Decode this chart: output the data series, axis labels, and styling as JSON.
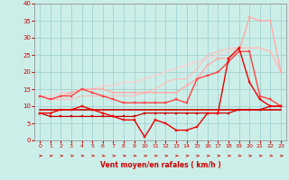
{
  "xlabel": "Vent moyen/en rafales ( km/h )",
  "xlim": [
    -0.5,
    23.5
  ],
  "ylim": [
    0,
    40
  ],
  "xticks": [
    0,
    1,
    2,
    3,
    4,
    5,
    6,
    7,
    8,
    9,
    10,
    11,
    12,
    13,
    14,
    15,
    16,
    17,
    18,
    19,
    20,
    21,
    22,
    23
  ],
  "yticks": [
    0,
    5,
    10,
    15,
    20,
    25,
    30,
    35,
    40
  ],
  "bg_color": "#cceee8",
  "grid_color": "#99cccc",
  "series": [
    {
      "x": [
        0,
        1,
        2,
        3,
        4,
        5,
        6,
        7,
        8,
        9,
        10,
        11,
        12,
        13,
        14,
        15,
        16,
        17,
        18,
        19,
        20,
        21,
        22,
        23
      ],
      "y": [
        9,
        9,
        9,
        9,
        9,
        9,
        9,
        9,
        9,
        9,
        9,
        9,
        9,
        9,
        9,
        9,
        9,
        9,
        9,
        9,
        9,
        9,
        9,
        9
      ],
      "color": "#cc0000",
      "lw": 1.2,
      "marker": null,
      "ms": 0,
      "alpha": 1.0,
      "zorder": 4
    },
    {
      "x": [
        0,
        1,
        2,
        3,
        4,
        5,
        6,
        7,
        8,
        9,
        10,
        11,
        12,
        13,
        14,
        15,
        16,
        17,
        18,
        19,
        20,
        21,
        22,
        23
      ],
      "y": [
        8,
        7,
        7,
        7,
        7,
        7,
        7,
        7,
        7,
        7,
        8,
        8,
        8,
        8,
        8,
        8,
        8,
        8,
        8,
        9,
        9,
        9,
        10,
        10
      ],
      "color": "#cc0000",
      "lw": 0.9,
      "marker": "s",
      "ms": 2,
      "alpha": 1.0,
      "zorder": 4
    },
    {
      "x": [
        0,
        1,
        2,
        3,
        4,
        5,
        6,
        7,
        8,
        9,
        10,
        11,
        12,
        13,
        14,
        15,
        16,
        17,
        18,
        19,
        20,
        21,
        22,
        23
      ],
      "y": [
        8,
        8,
        9,
        9,
        10,
        9,
        8,
        7,
        6,
        6,
        1,
        6,
        5,
        3,
        3,
        4,
        8,
        8,
        24,
        27,
        17,
        12,
        10,
        10
      ],
      "color": "#ee0000",
      "lw": 1.0,
      "marker": "s",
      "ms": 2,
      "alpha": 1.0,
      "zorder": 5
    },
    {
      "x": [
        0,
        1,
        2,
        3,
        4,
        5,
        6,
        7,
        8,
        9,
        10,
        11,
        12,
        13,
        14,
        15,
        16,
        17,
        18,
        19,
        20,
        21,
        22,
        23
      ],
      "y": [
        13,
        12,
        13,
        13,
        15,
        14,
        13,
        12,
        11,
        11,
        11,
        11,
        11,
        12,
        11,
        18,
        19,
        20,
        23,
        26,
        26,
        13,
        12,
        10
      ],
      "color": "#ff4444",
      "lw": 1.0,
      "marker": "s",
      "ms": 2,
      "alpha": 1.0,
      "zorder": 4
    },
    {
      "x": [
        0,
        1,
        2,
        3,
        4,
        5,
        6,
        7,
        8,
        9,
        10,
        11,
        12,
        13,
        14,
        15,
        16,
        17,
        18,
        19,
        20,
        21,
        22,
        23
      ],
      "y": [
        13,
        12,
        13,
        14,
        15,
        15,
        15,
        14,
        14,
        14,
        14,
        14,
        14,
        14,
        16,
        18,
        22,
        24,
        24,
        26,
        36,
        35,
        35,
        20
      ],
      "color": "#ffaaaa",
      "lw": 1.0,
      "marker": "s",
      "ms": 2,
      "alpha": 1.0,
      "zorder": 3
    },
    {
      "x": [
        0,
        1,
        2,
        3,
        4,
        5,
        6,
        7,
        8,
        9,
        10,
        11,
        12,
        13,
        14,
        15,
        16,
        17,
        18,
        19,
        20,
        21,
        22,
        23
      ],
      "y": [
        13,
        13,
        14,
        14,
        15,
        15,
        16,
        16,
        17,
        17,
        18,
        19,
        20,
        21,
        22,
        23,
        24,
        25,
        26,
        27,
        27,
        27,
        26,
        20
      ],
      "color": "#ffcccc",
      "lw": 1.0,
      "marker": null,
      "ms": 0,
      "alpha": 0.9,
      "zorder": 2
    },
    {
      "x": [
        0,
        1,
        2,
        3,
        4,
        5,
        6,
        7,
        8,
        9,
        10,
        11,
        12,
        13,
        14,
        15,
        16,
        17,
        18,
        19,
        20,
        21,
        22,
        23
      ],
      "y": [
        13,
        12,
        12,
        12,
        13,
        13,
        13,
        13,
        13,
        13,
        14,
        15,
        17,
        18,
        18,
        21,
        25,
        26,
        27,
        27,
        27,
        27,
        26,
        20
      ],
      "color": "#ffbbbb",
      "lw": 1.0,
      "marker": null,
      "ms": 0,
      "alpha": 0.85,
      "zorder": 2
    }
  ]
}
